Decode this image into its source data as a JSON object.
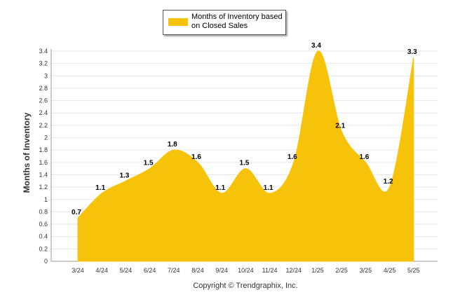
{
  "chart_data": {
    "type": "area",
    "categories": [
      "3/24",
      "4/24",
      "5/24",
      "6/24",
      "7/24",
      "8/24",
      "9/24",
      "10/24",
      "11/24",
      "12/24",
      "1/25",
      "2/25",
      "3/25",
      "4/25",
      "5/25"
    ],
    "series": [
      {
        "name": "Months of Inventory based on Closed Sales",
        "values": [
          0.7,
          1.1,
          1.3,
          1.5,
          1.8,
          1.6,
          1.1,
          1.5,
          1.1,
          1.6,
          3.4,
          2.1,
          1.6,
          1.2,
          3.3
        ],
        "labels": [
          "0.7",
          "1.1",
          "1.3",
          "1.5",
          "1.8",
          "1.6",
          "1.1",
          "1.5",
          "1.1",
          "1.6",
          "3.4",
          "2.1",
          "1.6",
          "1.2",
          "3.3"
        ],
        "color": "#f7c30a"
      }
    ],
    "ylabel": "Months of Inventory",
    "ylim": [
      0,
      3.4
    ],
    "yticks": [
      "0",
      "0.2",
      "0.4",
      "0.6",
      "0.8",
      "1",
      "1.2",
      "1.4",
      "1.6",
      "1.8",
      "2",
      "2.2",
      "2.4",
      "2.6",
      "2.8",
      "3",
      "3.2",
      "3.4"
    ],
    "grid": true,
    "legend_position": "top"
  },
  "legend": {
    "label": "Months of Inventory based on Closed Sales",
    "color": "#f7c30a"
  },
  "footer": {
    "copyright": "Copyright © Trendgraphix, Inc."
  }
}
